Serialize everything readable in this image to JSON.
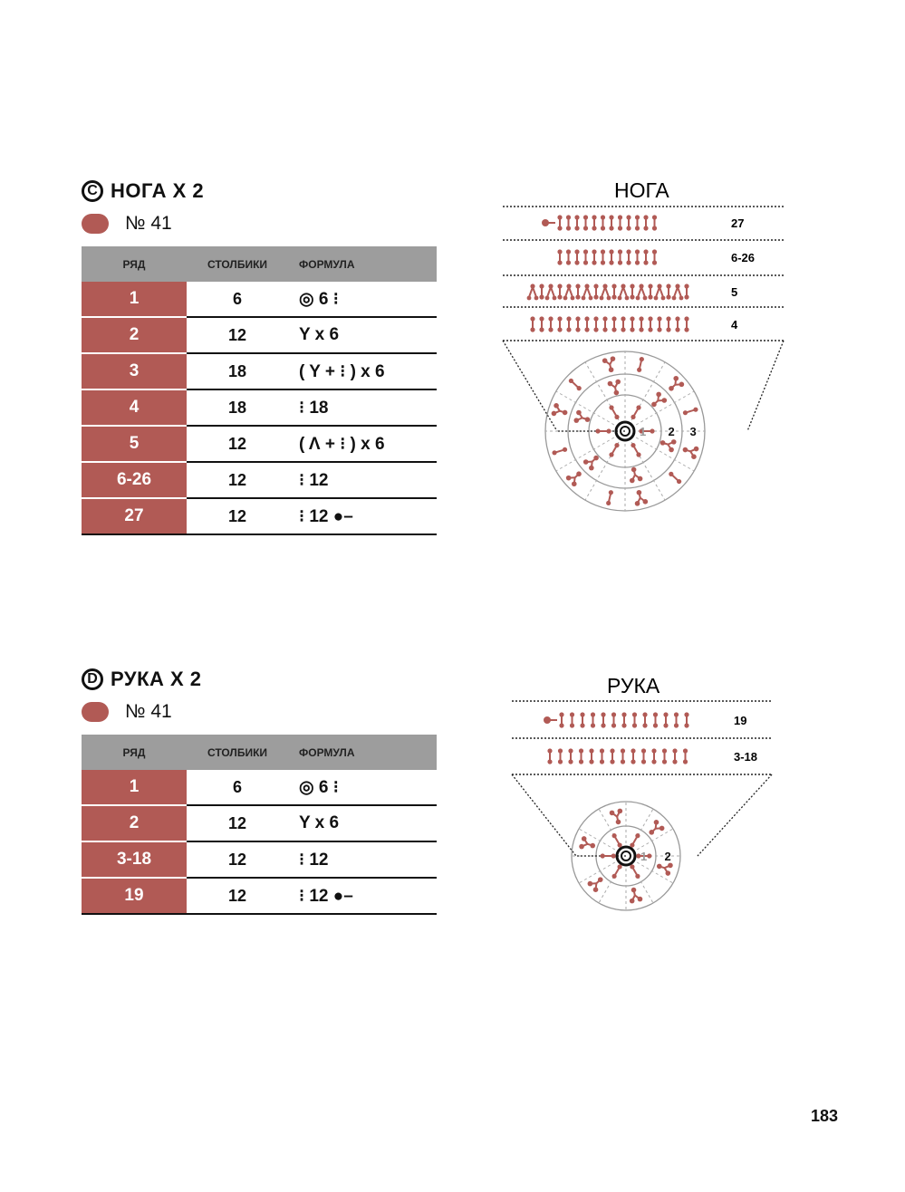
{
  "sections": [
    {
      "letter": "C",
      "title": "НОГА Х 2",
      "yarn": "№ 41",
      "headers": [
        "РЯД",
        "СТОЛБИКИ",
        "ФОРМУЛА"
      ],
      "rows": [
        {
          "row": "1",
          "stitches": "6",
          "formula": "◎ 6 ⁝"
        },
        {
          "row": "2",
          "stitches": "12",
          "formula": "Y x 6"
        },
        {
          "row": "3",
          "stitches": "18",
          "formula": "( Y + ⁝ ) x 6"
        },
        {
          "row": "4",
          "stitches": "18",
          "formula": "⁝ 18"
        },
        {
          "row": "5",
          "stitches": "12",
          "formula": "( Λ + ⁝ ) x 6"
        },
        {
          "row": "6-26",
          "stitches": "12",
          "formula": "⁝ 12"
        },
        {
          "row": "27",
          "stitches": "12",
          "formula": "⁝ 12 ●–"
        }
      ],
      "diagram": {
        "title": "НОГА",
        "row_labels": [
          "27",
          "6-26",
          "5",
          "4"
        ],
        "ring_labels": [
          "1",
          "2",
          "3"
        ]
      }
    },
    {
      "letter": "D",
      "title": "РУКА Х 2",
      "yarn": "№ 41",
      "headers": [
        "РЯД",
        "СТОЛБИКИ",
        "ФОРМУЛА"
      ],
      "rows": [
        {
          "row": "1",
          "stitches": "6",
          "formula": "◎ 6 ⁝"
        },
        {
          "row": "2",
          "stitches": "12",
          "formula": "Y x 6"
        },
        {
          "row": "3-18",
          "stitches": "12",
          "formula": "⁝ 12"
        },
        {
          "row": "19",
          "stitches": "12",
          "formula": "⁝ 12 ●–"
        }
      ],
      "diagram": {
        "title": "РУКА",
        "row_labels": [
          "19",
          "3-18"
        ],
        "ring_labels": [
          "1",
          "2"
        ]
      }
    }
  ],
  "page_number": "183",
  "colors": {
    "accent": "#b15a55",
    "header_gray": "#9d9d9d"
  }
}
